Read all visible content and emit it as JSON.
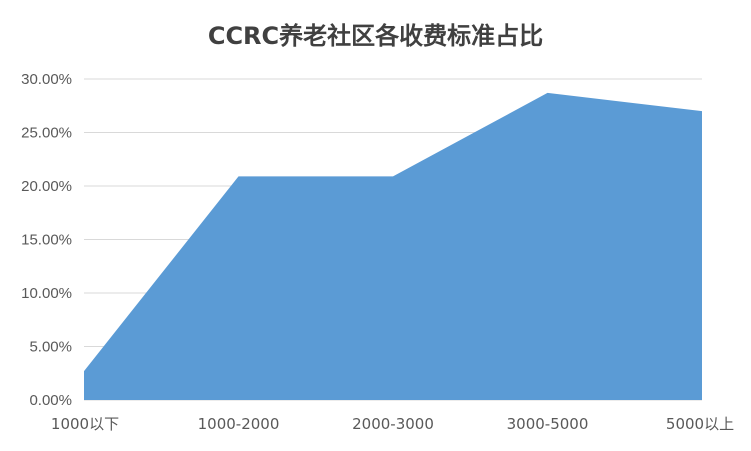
{
  "chart_data": {
    "type": "area",
    "title": "CCRC养老社区各收费标准占比",
    "categories": [
      "1000以下",
      "1000-2000",
      "2000-3000",
      "3000-5000",
      "5000以上"
    ],
    "series": [
      {
        "values": [
          0.027,
          0.209,
          0.209,
          0.287,
          0.27
        ]
      }
    ],
    "y_ticks": [
      "0.00%",
      "5.00%",
      "10.00%",
      "15.00%",
      "20.00%",
      "25.00%",
      "30.00%"
    ],
    "ylim": [
      0,
      0.3
    ],
    "grid": true,
    "legend": "none",
    "colors": {
      "area": "#5B9BD5",
      "grid": "#D9D9D9",
      "text": "#595959",
      "title": "#404040"
    }
  }
}
